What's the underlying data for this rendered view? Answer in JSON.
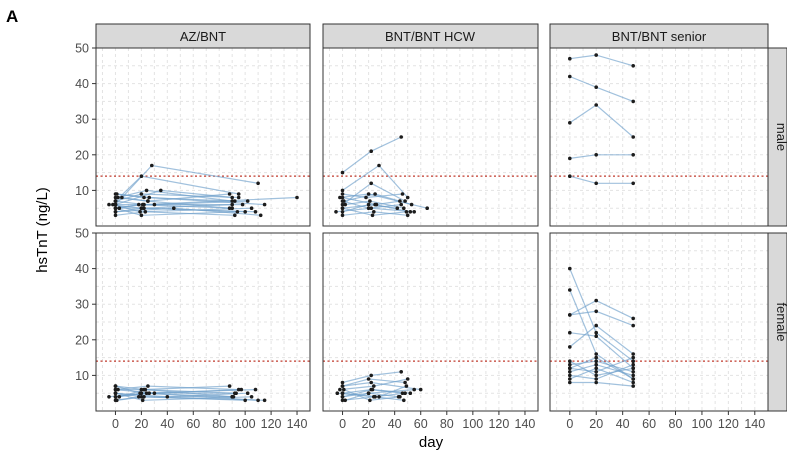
{
  "figure_label": "A",
  "chart_data": {
    "type": "line",
    "facet_columns": [
      "AZ/BNT",
      "BNT/BNT HCW",
      "BNT/BNT senior"
    ],
    "facet_rows": [
      "male",
      "female"
    ],
    "xlabel": "day",
    "ylabel": "hsTnT (ng/L)",
    "xlim": [
      -15,
      150
    ],
    "ylim": [
      0,
      50
    ],
    "x_ticks": [
      0,
      20,
      40,
      60,
      80,
      100,
      120,
      140
    ],
    "y_ticks": [
      10,
      20,
      30,
      40,
      50
    ],
    "reference_line_y": 14,
    "reference_line_color": "#c0392b",
    "line_color": "#6f9fcb",
    "point_color": "#1c1c1c",
    "grid": true,
    "panels": [
      {
        "column": "AZ/BNT",
        "row": "male",
        "trajectories": [
          [
            [
              -5,
              6
            ],
            [
              20,
              5
            ],
            [
              90,
              6
            ]
          ],
          [
            [
              0,
              9
            ],
            [
              22,
              8
            ],
            [
              92,
              7
            ]
          ],
          [
            [
              0,
              8
            ],
            [
              25,
              7
            ],
            [
              88,
              9
            ]
          ],
          [
            [
              0,
              7
            ],
            [
              20,
              9
            ],
            [
              95,
              8
            ]
          ],
          [
            [
              0,
              5
            ],
            [
              18,
              6
            ],
            [
              90,
              5
            ]
          ],
          [
            [
              0,
              4
            ],
            [
              22,
              5
            ],
            [
              100,
              4
            ]
          ],
          [
            [
              0,
              6
            ],
            [
              28,
              17
            ],
            [
              110,
              12
            ]
          ],
          [
            [
              0,
              7
            ],
            [
              20,
              14
            ],
            [
              95,
              9
            ]
          ],
          [
            [
              2,
              8
            ],
            [
              24,
              10
            ],
            [
              90,
              7
            ]
          ],
          [
            [
              0,
              5
            ],
            [
              21,
              6
            ],
            [
              140,
              8
            ]
          ],
          [
            [
              -2,
              6
            ],
            [
              19,
              4
            ],
            [
              105,
              5
            ]
          ],
          [
            [
              0,
              3
            ],
            [
              23,
              4
            ],
            [
              92,
              3
            ]
          ],
          [
            [
              1,
              9
            ],
            [
              26,
              8
            ],
            [
              115,
              6
            ]
          ],
          [
            [
              0,
              6
            ],
            [
              35,
              10
            ],
            [
              90,
              8
            ]
          ],
          [
            [
              3,
              5
            ],
            [
              20,
              5
            ],
            [
              108,
              4
            ]
          ],
          [
            [
              0,
              7
            ],
            [
              22,
              6
            ],
            [
              98,
              6
            ]
          ],
          [
            [
              0,
              4
            ],
            [
              45,
              5
            ],
            [
              112,
              3
            ]
          ],
          [
            [
              5,
              8
            ],
            [
              25,
              7
            ],
            [
              88,
              5
            ]
          ],
          [
            [
              0,
              5
            ],
            [
              20,
              3
            ],
            [
              94,
              4
            ]
          ],
          [
            [
              0,
              6
            ],
            [
              30,
              6
            ],
            [
              102,
              7
            ]
          ]
        ]
      },
      {
        "column": "BNT/BNT HCW",
        "row": "male",
        "trajectories": [
          [
            [
              0,
              15
            ],
            [
              22,
              21
            ],
            [
              45,
              25
            ]
          ],
          [
            [
              0,
              10
            ],
            [
              28,
              17
            ],
            [
              50,
              8
            ]
          ],
          [
            [
              -2,
              8
            ],
            [
              20,
              9
            ],
            [
              65,
              5
            ]
          ],
          [
            [
              0,
              6
            ],
            [
              22,
              12
            ],
            [
              48,
              7
            ]
          ],
          [
            [
              0,
              5
            ],
            [
              25,
              6
            ],
            [
              52,
              4
            ]
          ],
          [
            [
              0,
              7
            ],
            [
              20,
              5
            ],
            [
              45,
              6
            ]
          ],
          [
            [
              -5,
              4
            ],
            [
              22,
              5
            ],
            [
              55,
              4
            ]
          ],
          [
            [
              0,
              9
            ],
            [
              18,
              8
            ],
            [
              46,
              9
            ]
          ],
          [
            [
              0,
              3
            ],
            [
              24,
              4
            ],
            [
              50,
              3
            ]
          ],
          [
            [
              2,
              6
            ],
            [
              21,
              7
            ],
            [
              47,
              5
            ]
          ],
          [
            [
              0,
              8
            ],
            [
              26,
              6
            ],
            [
              44,
              7
            ]
          ],
          [
            [
              0,
              5
            ],
            [
              23,
              3
            ],
            [
              49,
              4
            ]
          ],
          [
            [
              0,
              4
            ],
            [
              20,
              6
            ],
            [
              42,
              5
            ]
          ],
          [
            [
              1,
              7
            ],
            [
              25,
              9
            ],
            [
              53,
              6
            ]
          ]
        ]
      },
      {
        "column": "BNT/BNT senior",
        "row": "male",
        "trajectories": [
          [
            [
              0,
              47
            ],
            [
              20,
              48
            ],
            [
              48,
              45
            ]
          ],
          [
            [
              0,
              42
            ],
            [
              20,
              39
            ],
            [
              48,
              35
            ]
          ],
          [
            [
              0,
              29
            ],
            [
              20,
              34
            ],
            [
              48,
              25
            ]
          ],
          [
            [
              0,
              19
            ],
            [
              20,
              20
            ],
            [
              48,
              20
            ]
          ],
          [
            [
              0,
              14
            ],
            [
              20,
              12
            ],
            [
              48,
              12
            ]
          ]
        ]
      },
      {
        "column": "AZ/BNT",
        "row": "female",
        "trajectories": [
          [
            [
              -5,
              4
            ],
            [
              20,
              5
            ],
            [
              90,
              4
            ]
          ],
          [
            [
              0,
              7
            ],
            [
              22,
              6
            ],
            [
              92,
              5
            ]
          ],
          [
            [
              0,
              6
            ],
            [
              25,
              7
            ],
            [
              95,
              6
            ]
          ],
          [
            [
              0,
              5
            ],
            [
              20,
              4
            ],
            [
              100,
              3
            ]
          ],
          [
            [
              0,
              3
            ],
            [
              18,
              4
            ],
            [
              90,
              4
            ]
          ],
          [
            [
              0,
              4
            ],
            [
              24,
              5
            ],
            [
              110,
              3
            ]
          ],
          [
            [
              2,
              6
            ],
            [
              20,
              6
            ],
            [
              88,
              7
            ]
          ],
          [
            [
              0,
              5
            ],
            [
              21,
              3
            ],
            [
              105,
              4
            ]
          ],
          [
            [
              0,
              4
            ],
            [
              26,
              5
            ],
            [
              93,
              5
            ]
          ],
          [
            [
              1,
              3
            ],
            [
              22,
              4
            ],
            [
              115,
              3
            ]
          ],
          [
            [
              0,
              6
            ],
            [
              30,
              5
            ],
            [
              97,
              6
            ]
          ],
          [
            [
              0,
              5
            ],
            [
              40,
              4
            ],
            [
              102,
              5
            ]
          ],
          [
            [
              3,
              4
            ],
            [
              23,
              6
            ],
            [
              91,
              4
            ]
          ],
          [
            [
              0,
              7
            ],
            [
              19,
              5
            ],
            [
              108,
              6
            ]
          ]
        ]
      },
      {
        "column": "BNT/BNT HCW",
        "row": "female",
        "trajectories": [
          [
            [
              0,
              8
            ],
            [
              22,
              10
            ],
            [
              45,
              11
            ]
          ],
          [
            [
              0,
              7
            ],
            [
              20,
              9
            ],
            [
              48,
              8
            ]
          ],
          [
            [
              -2,
              6
            ],
            [
              24,
              7
            ],
            [
              50,
              9
            ]
          ],
          [
            [
              0,
              5
            ],
            [
              22,
              6
            ],
            [
              46,
              5
            ]
          ],
          [
            [
              0,
              4
            ],
            [
              20,
              5
            ],
            [
              55,
              6
            ]
          ],
          [
            [
              0,
              3
            ],
            [
              25,
              4
            ],
            [
              47,
              3
            ]
          ],
          [
            [
              1,
              6
            ],
            [
              21,
              3
            ],
            [
              44,
              4
            ]
          ],
          [
            [
              0,
              4
            ],
            [
              23,
              6
            ],
            [
              52,
              5
            ]
          ],
          [
            [
              0,
              5
            ],
            [
              28,
              4
            ],
            [
              49,
              7
            ]
          ],
          [
            [
              2,
              3
            ],
            [
              20,
              5
            ],
            [
              43,
              4
            ]
          ],
          [
            [
              0,
              7
            ],
            [
              22,
              8
            ],
            [
              60,
              6
            ]
          ],
          [
            [
              -4,
              5
            ],
            [
              24,
              4
            ],
            [
              48,
              5
            ]
          ]
        ]
      },
      {
        "column": "BNT/BNT senior",
        "row": "female",
        "trajectories": [
          [
            [
              0,
              40
            ],
            [
              20,
              22
            ],
            [
              48,
              14
            ]
          ],
          [
            [
              0,
              34
            ],
            [
              20,
              16
            ],
            [
              48,
              9
            ]
          ],
          [
            [
              0,
              27
            ],
            [
              20,
              31
            ],
            [
              48,
              26
            ]
          ],
          [
            [
              0,
              27
            ],
            [
              20,
              28
            ],
            [
              48,
              24
            ]
          ],
          [
            [
              0,
              22
            ],
            [
              20,
              21
            ],
            [
              48,
              12
            ]
          ],
          [
            [
              0,
              18
            ],
            [
              20,
              24
            ],
            [
              48,
              16
            ]
          ],
          [
            [
              0,
              13
            ],
            [
              20,
              14
            ],
            [
              48,
              11
            ]
          ],
          [
            [
              0,
              12
            ],
            [
              20,
              11
            ],
            [
              48,
              15
            ]
          ],
          [
            [
              0,
              11
            ],
            [
              20,
              13
            ],
            [
              48,
              10
            ]
          ],
          [
            [
              0,
              10
            ],
            [
              20,
              9
            ],
            [
              48,
              13
            ]
          ],
          [
            [
              0,
              9
            ],
            [
              20,
              12
            ],
            [
              48,
              8
            ]
          ],
          [
            [
              0,
              8
            ],
            [
              20,
              8
            ],
            [
              48,
              7
            ]
          ],
          [
            [
              0,
              14
            ],
            [
              20,
              10
            ],
            [
              48,
              12
            ]
          ],
          [
            [
              0,
              12
            ],
            [
              20,
              15
            ],
            [
              48,
              9
            ]
          ]
        ]
      }
    ]
  }
}
